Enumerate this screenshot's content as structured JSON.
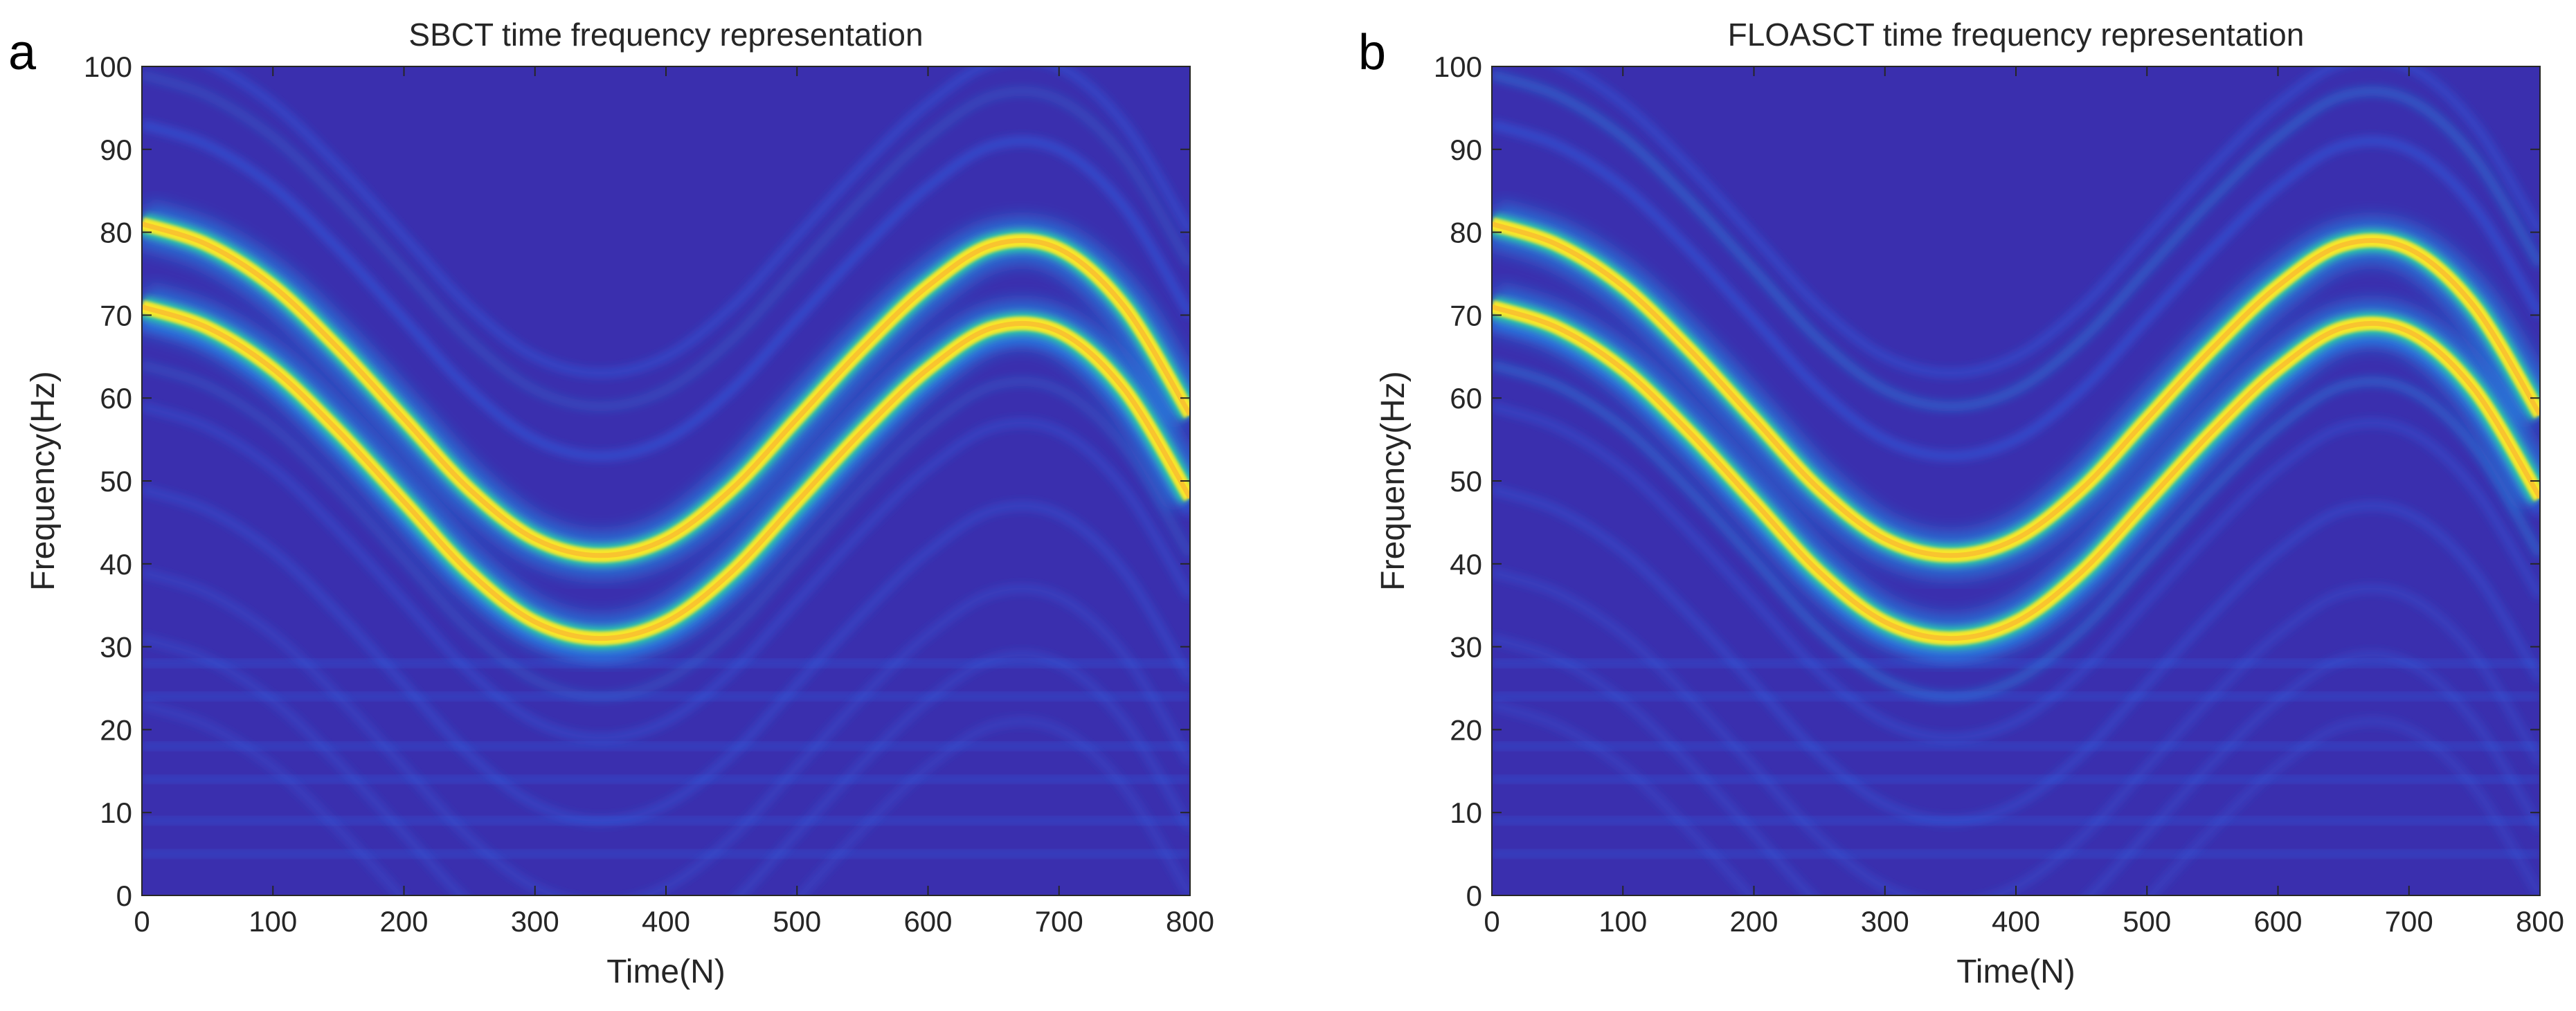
{
  "colors": {
    "background": "#3a2fae",
    "mid_blue": "#2f6df0",
    "light_blue": "#1fa3f2",
    "cyan_green": "#2bd3a4",
    "yellow": "#f7e62a",
    "orange": "#f9bd30",
    "axis_text": "#262626"
  },
  "chart_data": [
    {
      "panel_label": "a",
      "type": "heatmap",
      "title": "SBCT time frequency representation",
      "xlabel": "Time(N)",
      "ylabel": "Frequency(Hz)",
      "xlim": [
        0,
        800
      ],
      "ylim": [
        0,
        100
      ],
      "xticks": [
        "0",
        "100",
        "200",
        "300",
        "400",
        "500",
        "600",
        "700",
        "800"
      ],
      "yticks": [
        "0",
        "10",
        "20",
        "30",
        "40",
        "50",
        "60",
        "70",
        "80",
        "90",
        "100"
      ],
      "ridges": [
        {
          "name": "component 1",
          "x": [
            0,
            50,
            100,
            150,
            200,
            250,
            300,
            350,
            400,
            450,
            500,
            550,
            600,
            650,
            700,
            750,
            800
          ],
          "y": [
            81,
            78.5,
            73.5,
            66,
            57.5,
            49,
            43,
            41,
            43,
            49,
            57.5,
            66,
            73.5,
            78.5,
            78,
            71,
            58
          ]
        },
        {
          "name": "component 2",
          "x": [
            0,
            50,
            100,
            150,
            200,
            250,
            300,
            350,
            400,
            450,
            500,
            550,
            600,
            650,
            700,
            750,
            800
          ],
          "y": [
            71,
            68.5,
            63.5,
            56,
            47.5,
            39,
            33,
            31,
            33,
            39,
            47.5,
            56,
            63.5,
            68.5,
            68,
            61,
            48
          ]
        }
      ]
    },
    {
      "panel_label": "b",
      "type": "heatmap",
      "title": "FLOASCT time frequency representation",
      "xlabel": "Time(N)",
      "ylabel": "Frequency(Hz)",
      "xlim": [
        0,
        800
      ],
      "ylim": [
        0,
        100
      ],
      "xticks": [
        "0",
        "100",
        "200",
        "300",
        "400",
        "500",
        "600",
        "700",
        "800"
      ],
      "yticks": [
        "0",
        "10",
        "20",
        "30",
        "40",
        "50",
        "60",
        "70",
        "80",
        "90",
        "100"
      ],
      "ridges": [
        {
          "name": "component 1",
          "x": [
            0,
            50,
            100,
            150,
            200,
            250,
            300,
            350,
            400,
            450,
            500,
            550,
            600,
            650,
            700,
            750,
            800
          ],
          "y": [
            81,
            78.5,
            73.5,
            66,
            57.5,
            49,
            43,
            41,
            43,
            49,
            57.5,
            66,
            73.5,
            78.5,
            78,
            71,
            58
          ]
        },
        {
          "name": "component 2",
          "x": [
            0,
            50,
            100,
            150,
            200,
            250,
            300,
            350,
            400,
            450,
            500,
            550,
            600,
            650,
            700,
            750,
            800
          ],
          "y": [
            71,
            68.5,
            63.5,
            56,
            47.5,
            39,
            33,
            31,
            33,
            39,
            47.5,
            56,
            63.5,
            68.5,
            68,
            61,
            48
          ]
        }
      ]
    }
  ]
}
